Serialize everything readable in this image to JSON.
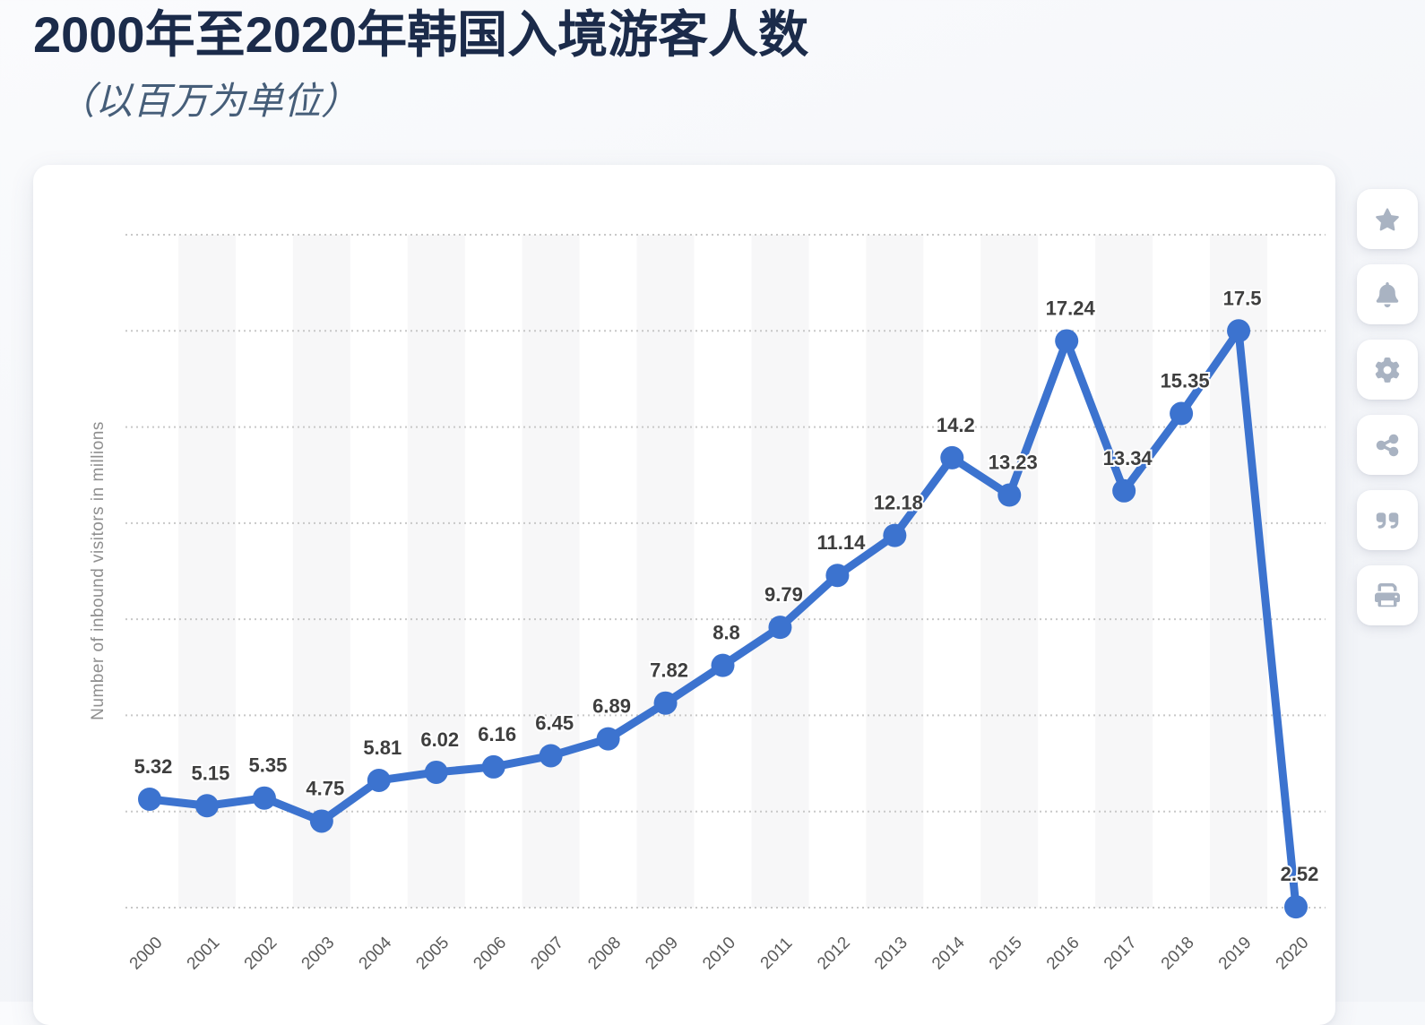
{
  "header": {
    "title": "2000年至2020年韩国入境游客人数",
    "subtitle": "（以百万为单位）"
  },
  "toolbar": {
    "buttons": [
      {
        "id": "favorite",
        "icon": "star-icon"
      },
      {
        "id": "notifications",
        "icon": "bell-icon"
      },
      {
        "id": "settings",
        "icon": "gear-icon"
      },
      {
        "id": "share",
        "icon": "share-icon"
      },
      {
        "id": "cite",
        "icon": "quote-icon"
      },
      {
        "id": "print",
        "icon": "printer-icon"
      }
    ]
  },
  "chart_data": {
    "type": "line",
    "title": "2000年至2020年韩国入境游客人数",
    "subtitle": "（以百万为单位）",
    "x": [
      2000,
      2001,
      2002,
      2003,
      2004,
      2005,
      2006,
      2007,
      2008,
      2009,
      2010,
      2011,
      2012,
      2013,
      2014,
      2015,
      2016,
      2017,
      2018,
      2019,
      2020
    ],
    "values": [
      5.32,
      5.15,
      5.35,
      4.75,
      5.81,
      6.02,
      6.16,
      6.45,
      6.89,
      7.82,
      8.8,
      9.79,
      11.14,
      12.18,
      14.2,
      13.23,
      17.24,
      13.34,
      15.35,
      17.5,
      2.52
    ],
    "xlabel": "",
    "ylabel": "Number of inbound visitors in millions",
    "ylim": [
      2.5,
      20
    ],
    "ytick_step": 2.5,
    "grid": "horizontal-dotted",
    "alternating_year_bands": true,
    "point_labels": true,
    "legend": "none",
    "colors": {
      "line": "#3C73CF",
      "point": "#3C73CF",
      "value_label": "#3E3E3E",
      "year_label": "#5A5A5A",
      "axis_label": "#8F8F8F",
      "grid": "#C8C8C8",
      "band": "#F7F7F8"
    }
  }
}
